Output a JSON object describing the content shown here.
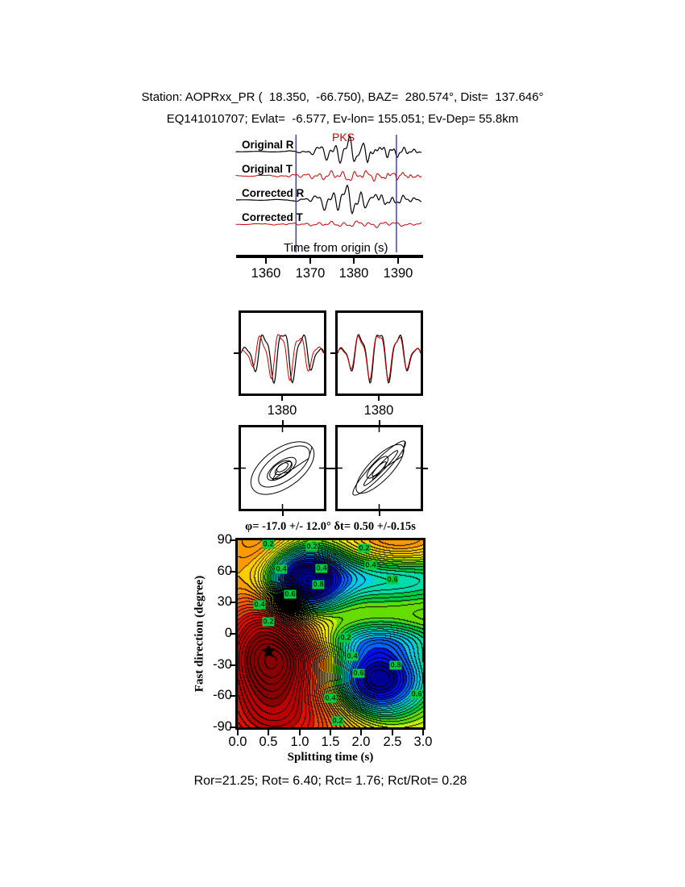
{
  "header": {
    "line1": "Station: AOPRxx_PR (  18.350,  -66.750), BAZ=  280.574°, Dist=  137.646°",
    "line2": "EQ141010707; Evlat=  -6.577, Ev-lon= 155.051; Ev-Dep= 55.8km"
  },
  "footer": {
    "text": "Ror=21.25; Rot= 6.40; Rct= 1.76; Rct/Rot= 0.28"
  },
  "chart_data": [
    {
      "type": "line",
      "id": "seismogram-panel",
      "xlabel": "Time from origin (s)",
      "x_range": [
        1353.2,
        1395.3
      ],
      "xticks": [
        1360,
        1370,
        1380,
        1390
      ],
      "phase_label": "PKS",
      "window": [
        1366.8,
        1389.6
      ],
      "window_color": "#3333cc",
      "traces": [
        {
          "label": "Original R",
          "color": "#000000",
          "amplitude": "large"
        },
        {
          "label": "Original T",
          "color": "#cc0000",
          "amplitude": "medium"
        },
        {
          "label": "Corrected R",
          "color": "#000000",
          "amplitude": "large"
        },
        {
          "label": "Corrected T",
          "color": "#cc0000",
          "amplitude": "small"
        }
      ]
    },
    {
      "type": "line",
      "id": "windowed-waveform-pair",
      "panels": [
        {
          "xtick": "1380",
          "traces": [
            "black",
            "red"
          ]
        },
        {
          "xtick": "1380",
          "traces": [
            "black",
            "red"
          ]
        }
      ]
    },
    {
      "type": "scatter",
      "id": "particle-motion-pair",
      "panels": [
        {
          "desc": "particle motion before correction"
        },
        {
          "desc": "particle motion after correction"
        }
      ]
    },
    {
      "type": "heatmap",
      "id": "splitting-parameter-misfit",
      "title": "φ= -17.0 +/- 12.0° δt= 0.50 +/-0.15s",
      "xlabel": "Splitting time (s)",
      "ylabel": "Fast direction (degree)",
      "x_range": [
        0,
        3
      ],
      "y_range": [
        -90,
        90
      ],
      "xticks": [
        "0.0",
        "0.5",
        "1.0",
        "1.5",
        "2.0",
        "2.5",
        "3.0"
      ],
      "yticks": [
        90,
        60,
        30,
        0,
        -30,
        -60,
        -90
      ],
      "best_fit": {
        "phi_deg": -17.0,
        "phi_err_deg": 12.0,
        "dt_s": 0.5,
        "dt_err_s": 0.15
      },
      "star": {
        "x": 0.5,
        "y": -17
      },
      "maximum": {
        "x": 0.55,
        "y": -17
      },
      "minima": [
        {
          "x": 1.05,
          "y": 50
        },
        {
          "x": 2.25,
          "y": -45
        }
      ],
      "contour_levels": [
        0.2,
        0.4,
        0.6,
        0.8
      ],
      "label_bg": "#00cc44",
      "grid": false,
      "legend": "none",
      "contour_labels": [
        {
          "t": "0.2",
          "x": 0.5,
          "y": 86
        },
        {
          "t": "0.2",
          "x": 1.2,
          "y": 84
        },
        {
          "t": "0.4",
          "x": 1.35,
          "y": 63
        },
        {
          "t": "0.2",
          "x": 2.05,
          "y": 82
        },
        {
          "t": "0.4",
          "x": 2.15,
          "y": 66
        },
        {
          "t": "0.6",
          "x": 2.5,
          "y": 52
        },
        {
          "t": "0.4",
          "x": 0.7,
          "y": 62
        },
        {
          "t": "0.6",
          "x": 0.85,
          "y": 38
        },
        {
          "t": "0.8",
          "x": 1.3,
          "y": 47
        },
        {
          "t": "0.4",
          "x": 0.35,
          "y": 28
        },
        {
          "t": "0.2",
          "x": 0.5,
          "y": 12
        },
        {
          "t": "0.2",
          "x": 1.75,
          "y": -4
        },
        {
          "t": "0.4",
          "x": 1.85,
          "y": -22
        },
        {
          "t": "0.6",
          "x": 1.95,
          "y": -38
        },
        {
          "t": "0.8",
          "x": 2.55,
          "y": -30
        },
        {
          "t": "0.6",
          "x": 2.9,
          "y": -58
        },
        {
          "t": "0.4",
          "x": 1.5,
          "y": -62
        },
        {
          "t": "0.2",
          "x": 1.62,
          "y": -84
        }
      ]
    }
  ]
}
